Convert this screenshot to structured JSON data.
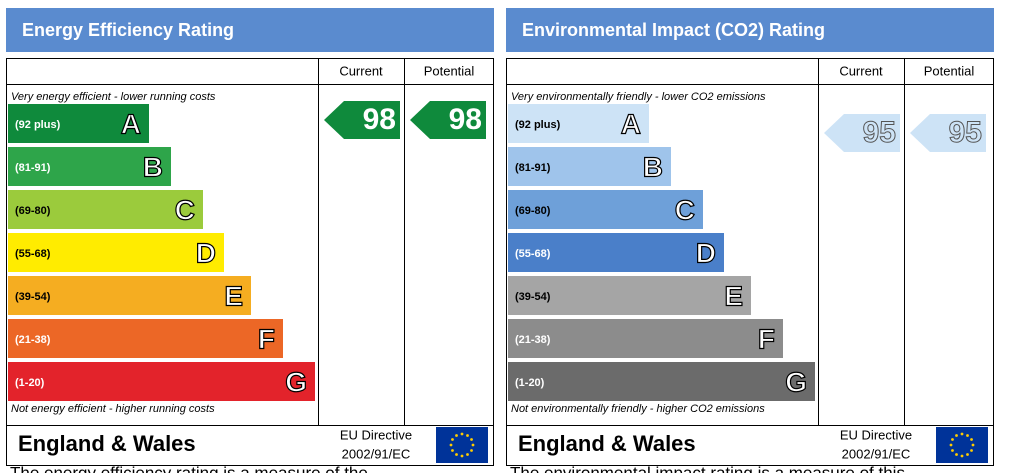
{
  "panels": [
    {
      "title": "Energy Efficiency Rating",
      "columns": [
        "Current",
        "Potential"
      ],
      "top_note": "Very energy efficient - lower running costs",
      "bottom_note": "Not energy efficient - higher running costs",
      "bands": [
        {
          "range": "(92 plus)",
          "letter": "A",
          "color": "#0f8a3c"
        },
        {
          "range": "(81-91)",
          "letter": "B",
          "color": "#2ea54a"
        },
        {
          "range": "(69-80)",
          "letter": "C",
          "color": "#9bcb3c"
        },
        {
          "range": "(55-68)",
          "letter": "D",
          "color": "#ffec00"
        },
        {
          "range": "(39-54)",
          "letter": "E",
          "color": "#f5ad21"
        },
        {
          "range": "(21-38)",
          "letter": "F",
          "color": "#ec6726"
        },
        {
          "range": "(1-20)",
          "letter": "G",
          "color": "#e3232b"
        }
      ],
      "current": 98,
      "potential": 98,
      "rating_band": 0,
      "arrow_color": "#0f8a3c",
      "footer": {
        "region": "England & Wales",
        "directive": [
          "EU Directive",
          "2002/91/EC"
        ]
      },
      "caption": "The energy efficiency rating is a measure of the"
    },
    {
      "title": "Environmental Impact (CO2) Rating",
      "columns": [
        "Current",
        "Potential"
      ],
      "top_note": "Very environmentally friendly - lower CO2 emissions",
      "bottom_note": "Not environmentally friendly - higher CO2 emissions",
      "bands": [
        {
          "range": "(92 plus)",
          "letter": "A",
          "color": "#cde3f6"
        },
        {
          "range": "(81-91)",
          "letter": "B",
          "color": "#9fc4eb"
        },
        {
          "range": "(69-80)",
          "letter": "C",
          "color": "#6ea0d9"
        },
        {
          "range": "(55-68)",
          "letter": "D",
          "color": "#4a7fc9"
        },
        {
          "range": "(39-54)",
          "letter": "E",
          "color": "#a5a5a5"
        },
        {
          "range": "(21-38)",
          "letter": "F",
          "color": "#8c8c8c"
        },
        {
          "range": "(1-20)",
          "letter": "G",
          "color": "#6b6b6b"
        }
      ],
      "current": 95,
      "potential": 95,
      "rating_band": 0,
      "arrow_color": "#cde3f6",
      "footer": {
        "region": "England & Wales",
        "directive": [
          "EU Directive",
          "2002/91/EC"
        ]
      },
      "caption": "The environmental impact rating is a measure of this"
    }
  ]
}
